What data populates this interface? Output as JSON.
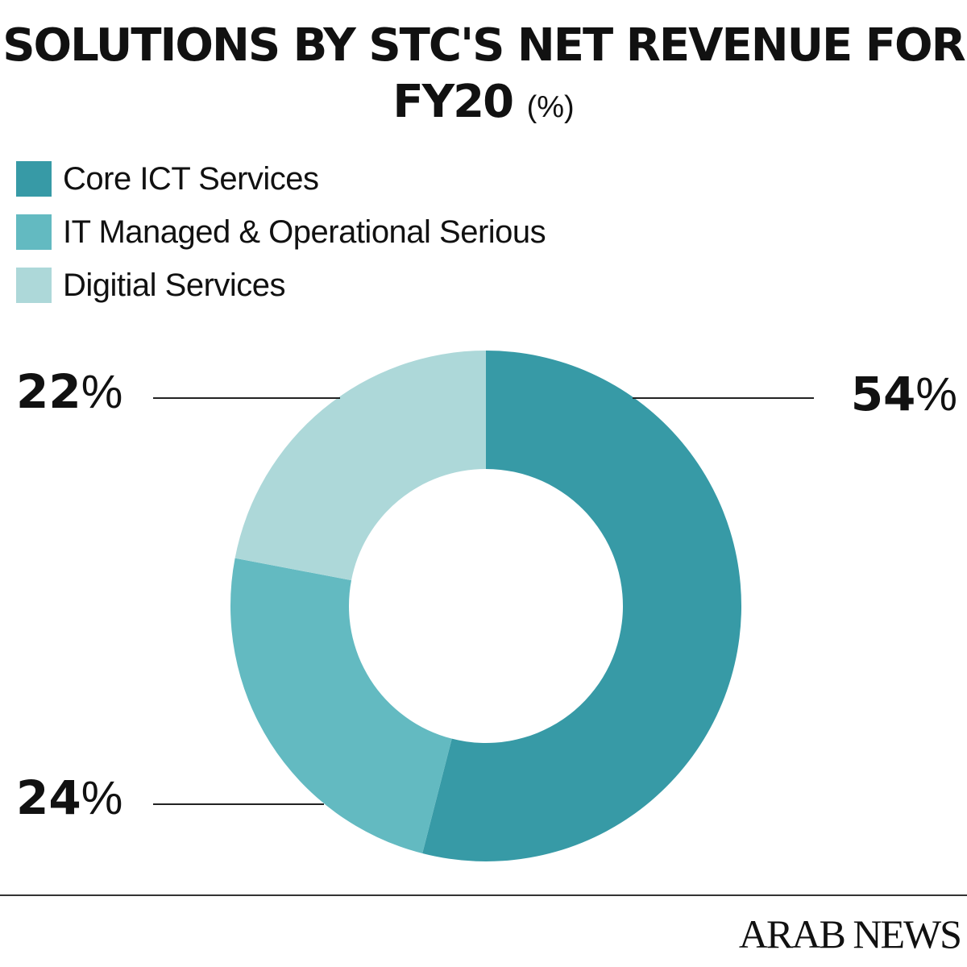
{
  "chart_data": {
    "type": "pie",
    "title_main": "SOLUTIONS BY STC'S NET REVENUE FOR FY20",
    "title_unit": "(%)",
    "categories": [
      "Core ICT Services",
      "IT Managed & Operational Serious",
      "Digitial Services"
    ],
    "values": [
      54,
      24,
      22
    ],
    "colors": [
      "#379aa6",
      "#63bac1",
      "#add8d9"
    ],
    "labels": [
      {
        "num": "54",
        "sym": "%"
      },
      {
        "num": "24",
        "sym": "%"
      },
      {
        "num": "22",
        "sym": "%"
      }
    ],
    "donut": true,
    "legend_position": "top-left"
  },
  "footer": {
    "brand": "ARAB NEWS"
  }
}
